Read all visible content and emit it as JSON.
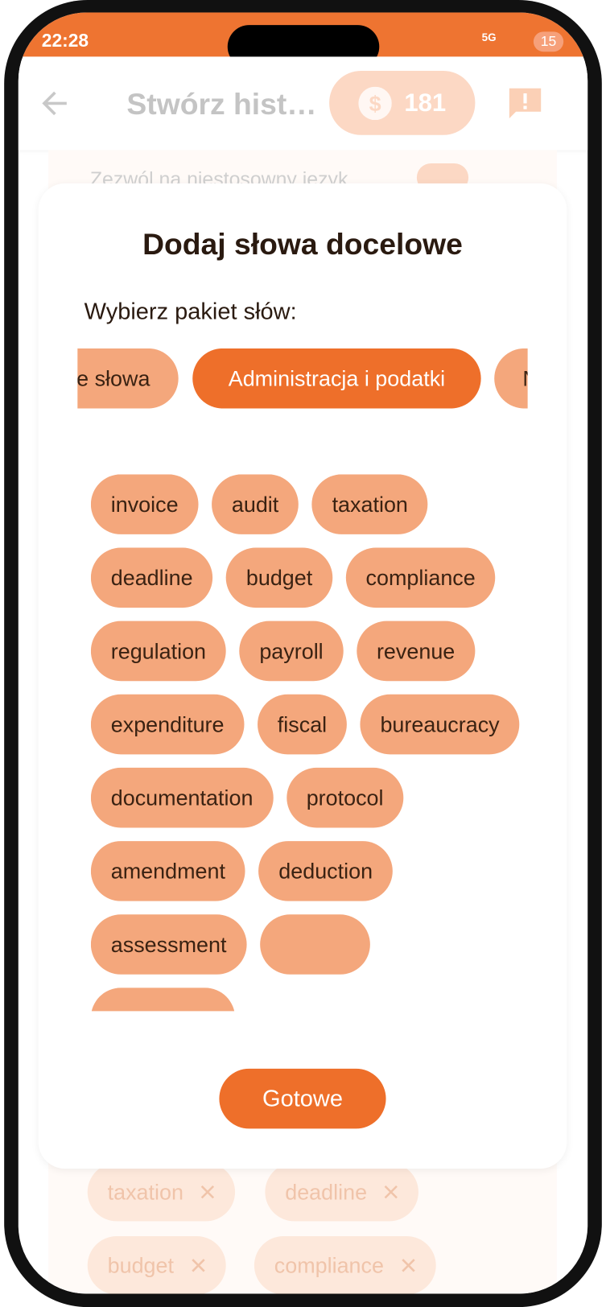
{
  "status_bar": {
    "time": "22:28",
    "network": "5G",
    "battery": "15"
  },
  "header": {
    "title": "Stwórz hist…",
    "coins": "181"
  },
  "background": {
    "setting_label": "Zezwól na niestosowny język",
    "selected_words": [
      "taxation",
      "deadline",
      "budget",
      "compliance"
    ]
  },
  "dialog": {
    "title": "Dodaj słowa docelowe",
    "prompt": "Wybierz pakiet słów:",
    "packages": [
      "e słowa",
      "Administracja i podatki",
      "N"
    ],
    "words": [
      "invoice",
      "audit",
      "taxation",
      "deadline",
      "budget",
      "compliance",
      "regulation",
      "payroll",
      "revenue",
      "expenditure",
      "fiscal",
      "bureaucracy",
      "documentation",
      "protocol",
      "amendment",
      "deduction",
      "assessment"
    ],
    "button": "Gotowe"
  }
}
